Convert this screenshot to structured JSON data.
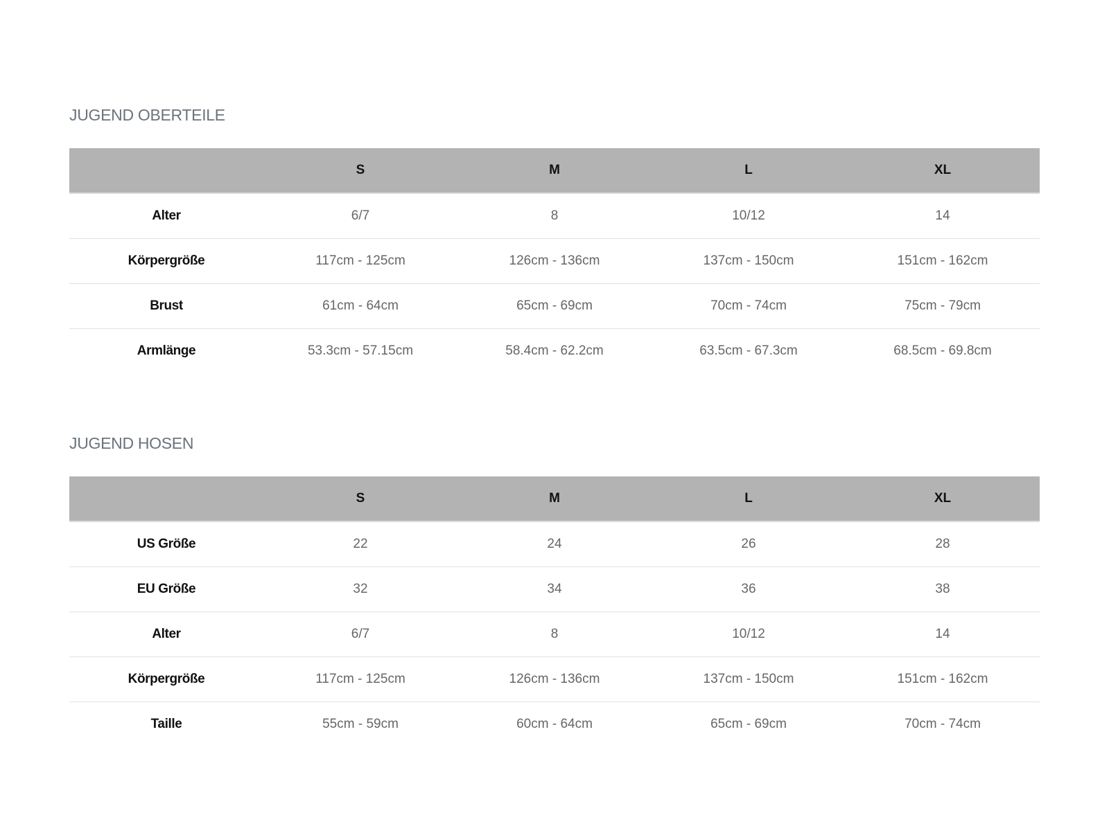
{
  "tables": [
    {
      "title": "JUGEND OBERTEILE",
      "headers": [
        "",
        "S",
        "M",
        "L",
        "XL"
      ],
      "rows": [
        {
          "label": "Alter",
          "values": [
            "6/7",
            "8",
            "10/12",
            "14"
          ]
        },
        {
          "label": "Körpergröße",
          "values": [
            "117cm - 125cm",
            "126cm - 136cm",
            "137cm - 150cm",
            "151cm - 162cm"
          ]
        },
        {
          "label": "Brust",
          "values": [
            "61cm - 64cm",
            "65cm - 69cm",
            "70cm - 74cm",
            "75cm - 79cm"
          ]
        },
        {
          "label": "Armlänge",
          "values": [
            "53.3cm - 57.15cm",
            "58.4cm - 62.2cm",
            "63.5cm - 67.3cm",
            "68.5cm - 69.8cm"
          ]
        }
      ]
    },
    {
      "title": "JUGEND HOSEN",
      "headers": [
        "",
        "S",
        "M",
        "L",
        "XL"
      ],
      "rows": [
        {
          "label": "US Größe",
          "values": [
            "22",
            "24",
            "26",
            "28"
          ]
        },
        {
          "label": "EU Größe",
          "values": [
            "32",
            "34",
            "36",
            "38"
          ]
        },
        {
          "label": "Alter",
          "values": [
            "6/7",
            "8",
            "10/12",
            "14"
          ]
        },
        {
          "label": "Körpergröße",
          "values": [
            "117cm - 125cm",
            "126cm - 136cm",
            "137cm - 150cm",
            "151cm - 162cm"
          ]
        },
        {
          "label": "Taille",
          "values": [
            "55cm - 59cm",
            "60cm - 64cm",
            "65cm - 69cm",
            "70cm - 74cm"
          ]
        }
      ]
    }
  ],
  "colors": {
    "header_bg": "#b3b3b3",
    "title": "#6b737b"
  }
}
